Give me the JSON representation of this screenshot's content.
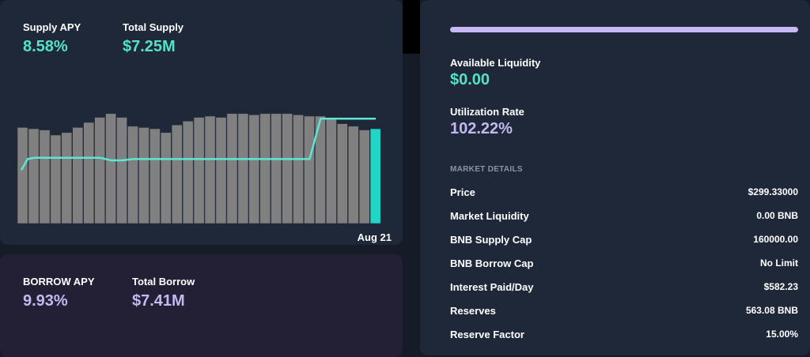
{
  "supply": {
    "apy_label": "Supply APY",
    "apy_value": "8.58%",
    "total_label": "Total Supply",
    "total_value": "$7.25M",
    "date_label": "Aug 21"
  },
  "borrow": {
    "apy_label": "BORROW APY",
    "apy_value": "9.93%",
    "total_label": "Total Borrow",
    "total_value": "$7.41M"
  },
  "liquidity": {
    "available_label": "Available Liquidity",
    "available_value": "$0.00",
    "utilization_label": "Utilization Rate",
    "utilization_value": "102.22%",
    "utilization_fraction": 1.0
  },
  "market_details": {
    "title": "MARKET DETAILS",
    "rows": [
      {
        "label": "Price",
        "value": "$299.33000"
      },
      {
        "label": "Market Liquidity",
        "value": "0.00 BNB"
      },
      {
        "label": "BNB Supply Cap",
        "value": "160000.00"
      },
      {
        "label": "BNB Borrow Cap",
        "value": "No Limit"
      },
      {
        "label": "Interest Paid/Day",
        "value": "$582.23"
      },
      {
        "label": "Reserves",
        "value": "563.08 BNB"
      },
      {
        "label": "Reserve Factor",
        "value": "15.00%"
      }
    ]
  },
  "chart_data": {
    "type": "bar",
    "title": "",
    "xlabel": "",
    "ylabel": "",
    "x_tick_labels": [
      "Aug 21"
    ],
    "series": [
      {
        "name": "Bars",
        "values": [
          0.76,
          0.75,
          0.74,
          0.7,
          0.72,
          0.76,
          0.8,
          0.84,
          0.87,
          0.84,
          0.77,
          0.76,
          0.75,
          0.72,
          0.78,
          0.81,
          0.84,
          0.85,
          0.84,
          0.87,
          0.87,
          0.86,
          0.87,
          0.87,
          0.87,
          0.86,
          0.85,
          0.85,
          0.83,
          0.79,
          0.77,
          0.74,
          0.75
        ]
      },
      {
        "name": "APY line",
        "values": [
          0.51,
          0.52,
          0.52,
          0.52,
          0.52,
          0.52,
          0.52,
          0.52,
          0.5,
          0.5,
          0.51,
          0.51,
          0.51,
          0.51,
          0.51,
          0.51,
          0.51,
          0.51,
          0.51,
          0.51,
          0.51,
          0.51,
          0.51,
          0.51,
          0.51,
          0.51,
          0.51,
          0.83,
          0.83,
          0.83,
          0.83,
          0.83,
          0.83
        ]
      }
    ],
    "highlight_index": 32,
    "colors": {
      "bar": "#808080",
      "highlight": "#1fd6c7",
      "line": "#5de6d2"
    },
    "ylim": [
      0,
      1
    ]
  },
  "colors": {
    "teal": "#54e0c9",
    "lavender": "#c4b8f0",
    "util_bar": "#c8b9f5",
    "supply_card_bg": "#1f2838",
    "borrow_card_bg": "#231f35"
  }
}
